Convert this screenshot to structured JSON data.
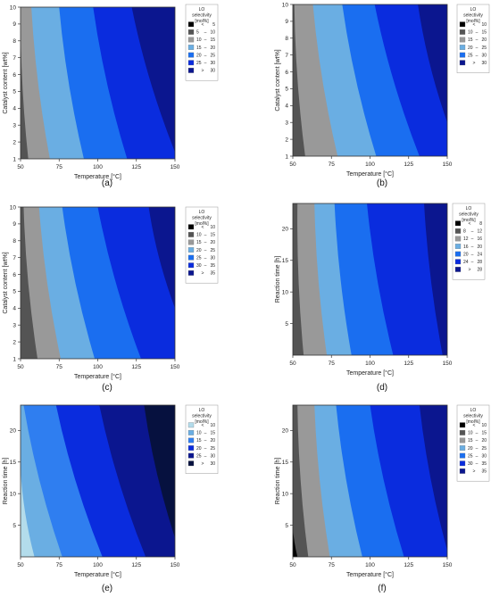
{
  "panels": [
    {
      "tag": "(a)",
      "chart_data": {
        "type": "heatmap",
        "xlabel": "Temperature [°C]",
        "ylabel": "Catalyst content [wt%]",
        "xlim": [
          50,
          150
        ],
        "ylim": [
          1,
          10
        ],
        "xticks": [
          "50",
          "75",
          "100",
          "125",
          "150"
        ],
        "yticks": [
          "1",
          "2",
          "3",
          "4",
          "5",
          "6",
          "7",
          "8",
          "9",
          "10"
        ],
        "legend_title": [
          "LO",
          "selectivity",
          "[mol%]"
        ],
        "legend_placement": "right",
        "bins": [
          {
            "label": [
              "<",
              "5"
            ],
            "color": "#000000"
          },
          {
            "label": [
              "5",
              "–",
              "10"
            ],
            "color": "#545454"
          },
          {
            "label": [
              "10",
              "–",
              "15"
            ],
            "color": "#999999"
          },
          {
            "label": [
              "15",
              "–",
              "20"
            ],
            "color": "#6aaee3"
          },
          {
            "label": [
              "20",
              "–",
              "25"
            ],
            "color": "#1a6ef0"
          },
          {
            "label": [
              "25",
              "–",
              "30"
            ],
            "color": "#0a2cde"
          },
          {
            "label": [
              ">",
              "30"
            ],
            "color": "#0b168f"
          }
        ],
        "region_bands": [
          {
            "color": "#545454",
            "boundary": [
              [
                50,
                10
              ],
              [
                55,
                1
              ]
            ]
          },
          {
            "color": "#999999",
            "boundary": [
              [
                57,
                10
              ],
              [
                69,
                1
              ]
            ]
          },
          {
            "color": "#6aaee3",
            "boundary": [
              [
                75,
                10
              ],
              [
                91,
                1
              ]
            ]
          },
          {
            "color": "#1a6ef0",
            "boundary": [
              [
                97,
                10
              ],
              [
                119,
                1
              ]
            ]
          },
          {
            "color": "#0a2cde",
            "boundary": [
              [
                122,
                10
              ],
              [
                150,
                1.4
              ]
            ]
          }
        ]
      }
    },
    {
      "tag": "(b)",
      "chart_data": {
        "type": "heatmap",
        "xlabel": "Temperature [°C]",
        "ylabel": "Catalyst content [wt%]",
        "xlim": [
          50,
          150
        ],
        "ylim": [
          1,
          10
        ],
        "xticks": [
          "50",
          "75",
          "100",
          "125",
          "150"
        ],
        "yticks": [
          "1",
          "2",
          "3",
          "4",
          "5",
          "6",
          "7",
          "8",
          "9",
          "10"
        ],
        "legend_title": [
          "LO",
          "selectivity",
          "[mol%]"
        ],
        "legend_placement": "right",
        "bins": [
          {
            "label": [
              "<",
              "10"
            ],
            "color": "#000000"
          },
          {
            "label": [
              "10",
              "–",
              "15"
            ],
            "color": "#545454"
          },
          {
            "label": [
              "15",
              "–",
              "20"
            ],
            "color": "#999999"
          },
          {
            "label": [
              "20",
              "–",
              "25"
            ],
            "color": "#6aaee3"
          },
          {
            "label": [
              "25",
              "–",
              "30"
            ],
            "color": "#1a6ef0"
          },
          {
            "label": [
              ">",
              "30"
            ],
            "color": "#0b168f"
          }
        ],
        "region_bands": [
          {
            "color": "#000000",
            "boundary": [
              [
                50,
                1
              ],
              [
                50,
                1
              ]
            ]
          },
          {
            "color": "#545454",
            "boundary": [
              [
                51,
                10
              ],
              [
                58,
                1
              ]
            ]
          },
          {
            "color": "#999999",
            "boundary": [
              [
                63,
                10
              ],
              [
                79,
                1
              ]
            ]
          },
          {
            "color": "#6aaee3",
            "boundary": [
              [
                82,
                10
              ],
              [
                104,
                1
              ]
            ]
          },
          {
            "color": "#1a6ef0",
            "boundary": [
              [
                103,
                10
              ],
              [
                132,
                1
              ]
            ]
          },
          {
            "color": "#0a2cde",
            "boundary": [
              [
                131,
                10
              ],
              [
                150,
                3
              ]
            ]
          }
        ]
      }
    },
    {
      "tag": "(c)",
      "chart_data": {
        "type": "heatmap",
        "xlabel": "Temperature [°C]",
        "ylabel": "Catalyst content [wt%]",
        "xlim": [
          50,
          150
        ],
        "ylim": [
          1,
          10
        ],
        "xticks": [
          "50",
          "75",
          "100",
          "125",
          "150"
        ],
        "yticks": [
          "1",
          "2",
          "3",
          "4",
          "5",
          "6",
          "7",
          "8",
          "9",
          "10"
        ],
        "legend_title": [
          "LO",
          "selectivity",
          "[mol%]"
        ],
        "legend_placement": "right",
        "bins": [
          {
            "label": [
              "<",
              "10"
            ],
            "color": "#000000"
          },
          {
            "label": [
              "10",
              "–",
              "15"
            ],
            "color": "#545454"
          },
          {
            "label": [
              "15",
              "–",
              "20"
            ],
            "color": "#999999"
          },
          {
            "label": [
              "20",
              "–",
              "25"
            ],
            "color": "#6aaee3"
          },
          {
            "label": [
              "25",
              "–",
              "30"
            ],
            "color": "#1a6ef0"
          },
          {
            "label": [
              "30",
              "–",
              "35"
            ],
            "color": "#0a2cde"
          },
          {
            "label": [
              ">",
              "35"
            ],
            "color": "#0b168f"
          }
        ],
        "region_bands": [
          {
            "color": "#000000",
            "boundary": [
              [
                50,
                1
              ],
              [
                50,
                1
              ]
            ]
          },
          {
            "color": "#545454",
            "boundary": [
              [
                52,
                10
              ],
              [
                61,
                1
              ]
            ]
          },
          {
            "color": "#999999",
            "boundary": [
              [
                62,
                10
              ],
              [
                76,
                1
              ]
            ]
          },
          {
            "color": "#6aaee3",
            "boundary": [
              [
                77,
                10
              ],
              [
                98,
                1
              ]
            ]
          },
          {
            "color": "#1a6ef0",
            "boundary": [
              [
                100,
                10
              ],
              [
                128,
                1
              ]
            ]
          },
          {
            "color": "#0a2cde",
            "boundary": [
              [
                133,
                10
              ],
              [
                150,
                4
              ]
            ]
          }
        ]
      }
    },
    {
      "tag": "(d)",
      "chart_data": {
        "type": "heatmap",
        "xlabel": "Temperature [°C]",
        "ylabel": "Reaction time [h]",
        "xlim": [
          50,
          150
        ],
        "ylim": [
          0,
          24
        ],
        "xticks": [
          "50",
          "75",
          "100",
          "125",
          "150"
        ],
        "yticks": [
          "5",
          "10",
          "15",
          "20"
        ],
        "legend_title": [
          "LO",
          "selectivity",
          "[mol%]"
        ],
        "legend_placement": "right",
        "bins": [
          {
            "label": [
              "<",
              "8"
            ],
            "color": "#000000"
          },
          {
            "label": [
              "8",
              "–",
              "12"
            ],
            "color": "#545454"
          },
          {
            "label": [
              "12",
              "–",
              "16"
            ],
            "color": "#999999"
          },
          {
            "label": [
              "16",
              "–",
              "20"
            ],
            "color": "#6aaee3"
          },
          {
            "label": [
              "20",
              "–",
              "24"
            ],
            "color": "#1a6ef0"
          },
          {
            "label": [
              "24",
              "–",
              "28"
            ],
            "color": "#0a2cde"
          },
          {
            "label": [
              ">",
              "28"
            ],
            "color": "#0b168f"
          }
        ],
        "region_bands": [
          {
            "color": "#000000",
            "boundary": [
              [
                50,
                24
              ],
              [
                50,
                0
              ]
            ]
          },
          {
            "color": "#545454",
            "boundary": [
              [
                53,
                24
              ],
              [
                57,
                0
              ]
            ]
          },
          {
            "color": "#999999",
            "boundary": [
              [
                64,
                24
              ],
              [
                72,
                0
              ]
            ]
          },
          {
            "color": "#6aaee3",
            "boundary": [
              [
                77,
                24
              ],
              [
                88,
                0
              ]
            ]
          },
          {
            "color": "#1a6ef0",
            "boundary": [
              [
                98,
                24
              ],
              [
                115,
                0
              ]
            ]
          },
          {
            "color": "#0a2cde",
            "boundary": [
              [
                135,
                24
              ],
              [
                147,
                0
              ]
            ]
          }
        ]
      }
    },
    {
      "tag": "(e)",
      "chart_data": {
        "type": "heatmap",
        "xlabel": "Temperature [°C]",
        "ylabel": "Reaction time [h]",
        "xlim": [
          50,
          150
        ],
        "ylim": [
          0,
          24
        ],
        "xticks": [
          "50",
          "75",
          "100",
          "125",
          "150"
        ],
        "yticks": [
          "5",
          "10",
          "15",
          "20"
        ],
        "legend_title": [
          "LO",
          "selectivity",
          "[mol%]"
        ],
        "legend_placement": "right",
        "bins": [
          {
            "label": [
              "<",
              "10"
            ],
            "color": "#b3dceb"
          },
          {
            "label": [
              "10",
              "–",
              "15"
            ],
            "color": "#6aaee3"
          },
          {
            "label": [
              "15",
              "–",
              "20"
            ],
            "color": "#2f7ef0"
          },
          {
            "label": [
              "20",
              "–",
              "25"
            ],
            "color": "#0a2cde"
          },
          {
            "label": [
              "25",
              "–",
              "30"
            ],
            "color": "#0b168f"
          },
          {
            "label": [
              ">",
              "30"
            ],
            "color": "#06113f"
          }
        ],
        "region_bands": [
          {
            "color": "#b3dceb",
            "boundary": [
              [
                50,
                14
              ],
              [
                59,
                0
              ]
            ]
          },
          {
            "color": "#6aaee3",
            "boundary": [
              [
                52,
                24
              ],
              [
                77,
                0
              ]
            ]
          },
          {
            "color": "#2f7ef0",
            "boundary": [
              [
                73,
                24
              ],
              [
                103,
                0
              ]
            ]
          },
          {
            "color": "#0a2cde",
            "boundary": [
              [
                101,
                24
              ],
              [
                131,
                0
              ]
            ]
          },
          {
            "color": "#0b168f",
            "boundary": [
              [
                130,
                24
              ],
              [
                150,
                3
              ]
            ]
          }
        ]
      }
    },
    {
      "tag": "(f)",
      "chart_data": {
        "type": "heatmap",
        "xlabel": "Temperature [°C]",
        "ylabel": "Reaction time [h]",
        "xlim": [
          50,
          150
        ],
        "ylim": [
          0,
          24
        ],
        "xticks": [
          "50",
          "75",
          "100",
          "125",
          "150"
        ],
        "yticks": [
          "5",
          "10",
          "15",
          "20"
        ],
        "legend_title": [
          "LO",
          "selectivity",
          "[mol%]"
        ],
        "legend_placement": "right",
        "bins": [
          {
            "label": [
              "<",
              "10"
            ],
            "color": "#000000"
          },
          {
            "label": [
              "10",
              "–",
              "15"
            ],
            "color": "#545454"
          },
          {
            "label": [
              "15",
              "–",
              "20"
            ],
            "color": "#999999"
          },
          {
            "label": [
              "20",
              "–",
              "25"
            ],
            "color": "#6aaee3"
          },
          {
            "label": [
              "25",
              "–",
              "30"
            ],
            "color": "#1a6ef0"
          },
          {
            "label": [
              "30",
              "–",
              "35"
            ],
            "color": "#0a2cde"
          },
          {
            "label": [
              ">",
              "35"
            ],
            "color": "#0b168f"
          }
        ],
        "region_bands": [
          {
            "color": "#000000",
            "boundary": [
              [
                50,
                8
              ],
              [
                53,
                0
              ]
            ]
          },
          {
            "color": "#545454",
            "boundary": [
              [
                53,
                24
              ],
              [
                60,
                0
              ]
            ]
          },
          {
            "color": "#999999",
            "boundary": [
              [
                64,
                24
              ],
              [
                74,
                0
              ]
            ]
          },
          {
            "color": "#6aaee3",
            "boundary": [
              [
                78,
                24
              ],
              [
                95,
                0
              ]
            ]
          },
          {
            "color": "#1a6ef0",
            "boundary": [
              [
                100,
                24
              ],
              [
                122,
                0
              ]
            ]
          },
          {
            "color": "#0a2cde",
            "boundary": [
              [
                132,
                24
              ],
              [
                150,
                1
              ]
            ]
          }
        ]
      }
    }
  ]
}
